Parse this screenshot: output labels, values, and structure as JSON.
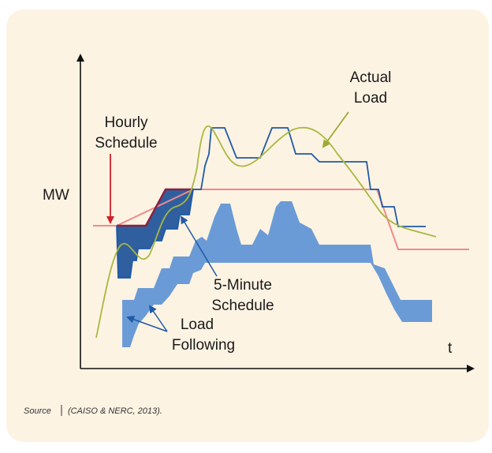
{
  "diagram": {
    "axis_y": "MW",
    "axis_x": "t",
    "actual_load": [
      "Actual",
      "Load"
    ],
    "hourly_schedule": [
      "Hourly",
      "Schedule"
    ],
    "five_minute_schedule": [
      "5-Minute",
      "Schedule"
    ],
    "load_following": [
      "Load",
      "Following"
    ],
    "source_label": "Source",
    "source_text": "(CAISO & NERC, 2013)."
  }
}
